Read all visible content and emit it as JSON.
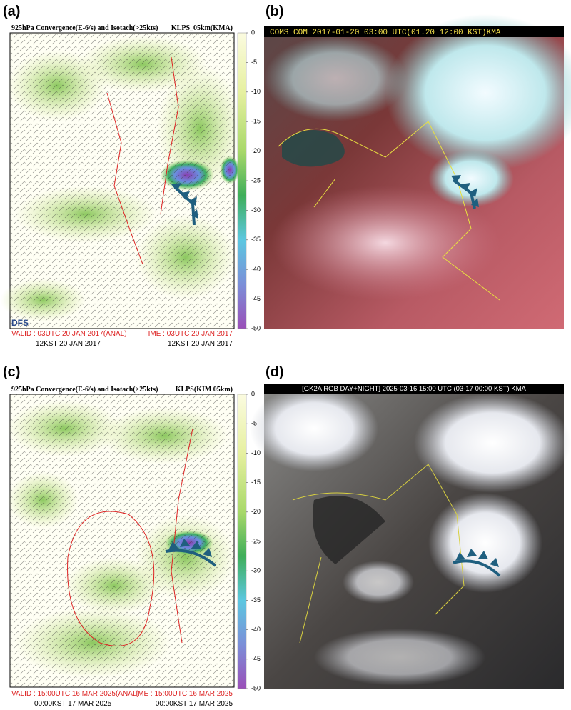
{
  "panels": [
    {
      "label": "(a)",
      "title_left": "925hPa Convergence(E-6/s) and Isotach(>25kts)",
      "title_right": "KLPS_05km(KMA)",
      "colorbar_ticks": [
        0,
        -5,
        -10,
        -15,
        -20,
        -25,
        -30,
        -35,
        -40,
        -45,
        -50
      ],
      "valid_left": "VALID : 03UTC 20 JAN 2017(ANAL)",
      "time_right": "TIME : 03UTC 20 JAN 2017",
      "kst_left": "12KST 20 JAN 2017",
      "kst_right": "12KST 20 JAN 2017",
      "watermark": "DFS"
    },
    {
      "label": "(b)",
      "header": "COMS COM 2017-01-20 03:00 UTC(01.20 12:00 KST)KMA"
    },
    {
      "label": "(c)",
      "title_left": "925hPa Convergence(E-6/s) and Isotach(>25kts)",
      "title_right": "KLPS(KIM 05km)",
      "colorbar_ticks": [
        0,
        -5,
        -10,
        -15,
        -20,
        -25,
        -30,
        -35,
        -40,
        -45,
        -50
      ],
      "valid_left": "VALID : 15:00UTC 16 MAR 2025(ANAL)",
      "time_right": "TIME : 15:00UTC 16 MAR 2025",
      "kst_left": "00:00KST 17 MAR 2025",
      "kst_right": "00:00KST 17 MAR 2025"
    },
    {
      "label": "(d)",
      "header": "[GK2A RGB DAY+NIGHT] 2025-03-16 15:00 UTC (03-17 00:00 KST) KMA"
    }
  ]
}
